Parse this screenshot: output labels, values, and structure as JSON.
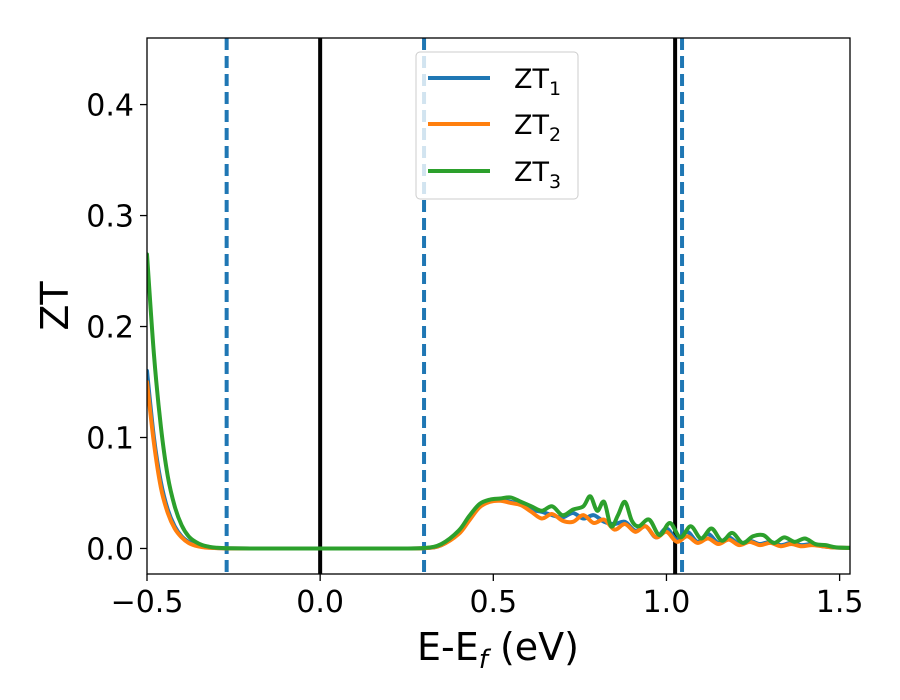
{
  "chart_data": {
    "type": "line",
    "title": "",
    "xlabel": "E-E",
    "xlabel_sub": "f",
    "xlabel_unit": " (eV)",
    "ylabel": "ZT",
    "xlim": [
      -0.5,
      1.53
    ],
    "ylim": [
      -0.023,
      0.46
    ],
    "xticks": [
      -0.5,
      0.0,
      0.5,
      1.0,
      1.5
    ],
    "xtick_labels": [
      "−0.5",
      "0.0",
      "0.5",
      "1.0",
      "1.5"
    ],
    "yticks": [
      0.0,
      0.1,
      0.2,
      0.3,
      0.4
    ],
    "ytick_labels": [
      "0.0",
      "0.1",
      "0.2",
      "0.3",
      "0.4"
    ],
    "grid": false,
    "legend_position": "top-center",
    "vlines": [
      {
        "x": -0.27,
        "style": "dashed",
        "color": "#1f77b4"
      },
      {
        "x": 0.0,
        "style": "solid",
        "color": "#000000"
      },
      {
        "x": 0.3,
        "style": "dashed",
        "color": "#1f77b4"
      },
      {
        "x": 1.025,
        "style": "solid",
        "color": "#000000"
      },
      {
        "x": 1.045,
        "style": "dashed",
        "color": "#1f77b4"
      }
    ],
    "series": [
      {
        "name": "ZT",
        "name_sub": "1",
        "color": "#1f77b4",
        "x": [
          -0.5,
          -0.48,
          -0.46,
          -0.44,
          -0.42,
          -0.4,
          -0.38,
          -0.36,
          -0.34,
          -0.32,
          -0.3,
          -0.27,
          -0.2,
          -0.1,
          0.0,
          0.1,
          0.2,
          0.3,
          0.35,
          0.4,
          0.43,
          0.46,
          0.49,
          0.52,
          0.55,
          0.58,
          0.61,
          0.64,
          0.67,
          0.7,
          0.73,
          0.76,
          0.79,
          0.82,
          0.85,
          0.88,
          0.91,
          0.94,
          0.97,
          1.0,
          1.03,
          1.06,
          1.09,
          1.12,
          1.15,
          1.18,
          1.21,
          1.24,
          1.27,
          1.3,
          1.33,
          1.36,
          1.39,
          1.42,
          1.45,
          1.48,
          1.53
        ],
        "y": [
          0.16,
          0.1,
          0.06,
          0.035,
          0.02,
          0.011,
          0.006,
          0.003,
          0.0015,
          0.0008,
          0.0004,
          0.0001,
          0.0,
          0.0,
          0.0,
          0.0,
          0.0,
          0.0003,
          0.003,
          0.014,
          0.026,
          0.038,
          0.043,
          0.044,
          0.042,
          0.04,
          0.035,
          0.033,
          0.03,
          0.028,
          0.032,
          0.027,
          0.03,
          0.024,
          0.022,
          0.024,
          0.016,
          0.02,
          0.01,
          0.018,
          0.008,
          0.015,
          0.006,
          0.013,
          0.005,
          0.01,
          0.004,
          0.007,
          0.004,
          0.006,
          0.003,
          0.005,
          0.003,
          0.004,
          0.002,
          0.001,
          0.0005
        ]
      },
      {
        "name": "ZT",
        "name_sub": "2",
        "color": "#ff7f0e",
        "x": [
          -0.5,
          -0.48,
          -0.46,
          -0.44,
          -0.42,
          -0.4,
          -0.38,
          -0.36,
          -0.34,
          -0.32,
          -0.3,
          -0.27,
          -0.2,
          -0.1,
          0.0,
          0.1,
          0.2,
          0.3,
          0.35,
          0.4,
          0.43,
          0.46,
          0.49,
          0.52,
          0.55,
          0.58,
          0.61,
          0.64,
          0.67,
          0.7,
          0.73,
          0.76,
          0.79,
          0.82,
          0.85,
          0.88,
          0.91,
          0.94,
          0.97,
          1.0,
          1.03,
          1.06,
          1.09,
          1.12,
          1.15,
          1.18,
          1.21,
          1.24,
          1.27,
          1.3,
          1.33,
          1.36,
          1.39,
          1.42,
          1.45,
          1.48,
          1.53
        ],
        "y": [
          0.15,
          0.095,
          0.055,
          0.032,
          0.018,
          0.01,
          0.005,
          0.0025,
          0.0012,
          0.0006,
          0.0003,
          0.0001,
          0.0,
          0.0,
          0.0,
          0.0,
          0.0,
          0.0003,
          0.003,
          0.013,
          0.025,
          0.037,
          0.042,
          0.043,
          0.041,
          0.039,
          0.033,
          0.027,
          0.031,
          0.025,
          0.024,
          0.03,
          0.023,
          0.026,
          0.017,
          0.022,
          0.015,
          0.02,
          0.01,
          0.015,
          0.006,
          0.011,
          0.005,
          0.009,
          0.004,
          0.008,
          0.003,
          0.006,
          0.003,
          0.005,
          0.002,
          0.004,
          0.002,
          0.003,
          0.002,
          0.001,
          0.0005
        ]
      },
      {
        "name": "ZT",
        "name_sub": "3",
        "color": "#2ca02c",
        "x": [
          -0.5,
          -0.48,
          -0.46,
          -0.44,
          -0.42,
          -0.4,
          -0.38,
          -0.36,
          -0.34,
          -0.32,
          -0.3,
          -0.27,
          -0.2,
          -0.1,
          0.0,
          0.1,
          0.2,
          0.3,
          0.35,
          0.4,
          0.43,
          0.46,
          0.49,
          0.52,
          0.55,
          0.58,
          0.61,
          0.64,
          0.67,
          0.7,
          0.73,
          0.76,
          0.78,
          0.8,
          0.82,
          0.84,
          0.86,
          0.88,
          0.9,
          0.92,
          0.95,
          0.98,
          1.01,
          1.04,
          1.07,
          1.1,
          1.13,
          1.16,
          1.19,
          1.22,
          1.25,
          1.28,
          1.31,
          1.34,
          1.37,
          1.4,
          1.43,
          1.46,
          1.49,
          1.53
        ],
        "y": [
          0.265,
          0.175,
          0.11,
          0.065,
          0.038,
          0.021,
          0.011,
          0.006,
          0.003,
          0.0015,
          0.0007,
          0.0002,
          0.0,
          0.0,
          0.0,
          0.0,
          0.0,
          0.0004,
          0.004,
          0.016,
          0.029,
          0.04,
          0.044,
          0.045,
          0.046,
          0.042,
          0.038,
          0.034,
          0.038,
          0.03,
          0.035,
          0.038,
          0.047,
          0.034,
          0.042,
          0.02,
          0.03,
          0.042,
          0.025,
          0.02,
          0.026,
          0.012,
          0.023,
          0.01,
          0.02,
          0.009,
          0.018,
          0.007,
          0.014,
          0.005,
          0.011,
          0.012,
          0.005,
          0.01,
          0.006,
          0.009,
          0.004,
          0.003,
          0.001,
          0.0005
        ]
      }
    ]
  }
}
